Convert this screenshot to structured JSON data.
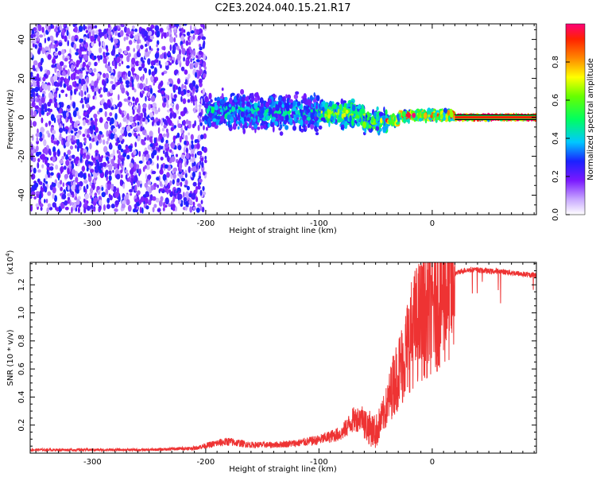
{
  "title": "C2E3.2024.040.15.21.R17",
  "chart_data": [
    {
      "type": "heatmap",
      "xlabel": "Height of straight line (km)",
      "ylabel": "Frequency (Hz)",
      "xlim": [
        -355,
        92
      ],
      "ylim": [
        -50,
        48
      ],
      "x_ticks": [
        -300,
        -200,
        -100,
        0
      ],
      "y_ticks": [
        -40,
        -20,
        0,
        20,
        40
      ],
      "colorbar": {
        "label": "Normalized spectral amplitude",
        "range": [
          0,
          1
        ],
        "ticks": [
          0.0,
          0.2,
          0.4,
          0.6,
          0.8
        ]
      },
      "features": [
        {
          "x_range": [
            -355,
            -200
          ],
          "freq_spread": 48,
          "level": 0.18
        },
        {
          "x_range": [
            -200,
            -100
          ],
          "freq_spread": 12,
          "level": 0.35
        },
        {
          "x_range": [
            -100,
            -40
          ],
          "freq_spread": 8,
          "level": 0.5
        },
        {
          "x_range": [
            -40,
            20
          ],
          "freq_spread": 3,
          "level": 0.7
        },
        {
          "x_range": [
            20,
            92
          ],
          "freq_spread": 1,
          "level": 1.0
        }
      ]
    },
    {
      "type": "line",
      "xlabel": "Height of straight line (km)",
      "ylabel": "SNR (10 * v/v)",
      "y_scale_label": "(x10",
      "y_scale_exp": "4",
      "y_scale_close": ")",
      "xlim": [
        -355,
        92
      ],
      "ylim": [
        0,
        1.36
      ],
      "x_ticks": [
        -300,
        -200,
        -100,
        0
      ],
      "y_ticks": [
        0.2,
        0.4,
        0.6,
        0.8,
        1.0,
        1.2
      ],
      "series": [
        {
          "color": "#ee3333",
          "x": [
            -355,
            -300,
            -250,
            -210,
            -190,
            -180,
            -160,
            -140,
            -120,
            -100,
            -80,
            -70,
            -60,
            -50,
            -45,
            -40,
            -35,
            -30,
            -25,
            -20,
            -15,
            -10,
            -5,
            0,
            5,
            10,
            15,
            20,
            25,
            30,
            40,
            50,
            60,
            70,
            80,
            92
          ],
          "y": [
            0.02,
            0.02,
            0.02,
            0.03,
            0.06,
            0.07,
            0.05,
            0.05,
            0.06,
            0.08,
            0.12,
            0.2,
            0.22,
            0.16,
            0.25,
            0.35,
            0.5,
            0.6,
            0.7,
            0.85,
            0.95,
            1.0,
            1.05,
            1.1,
            1.15,
            1.2,
            1.25,
            1.28,
            1.3,
            1.31,
            1.31,
            1.3,
            1.3,
            1.29,
            1.28,
            1.27
          ]
        }
      ]
    }
  ]
}
